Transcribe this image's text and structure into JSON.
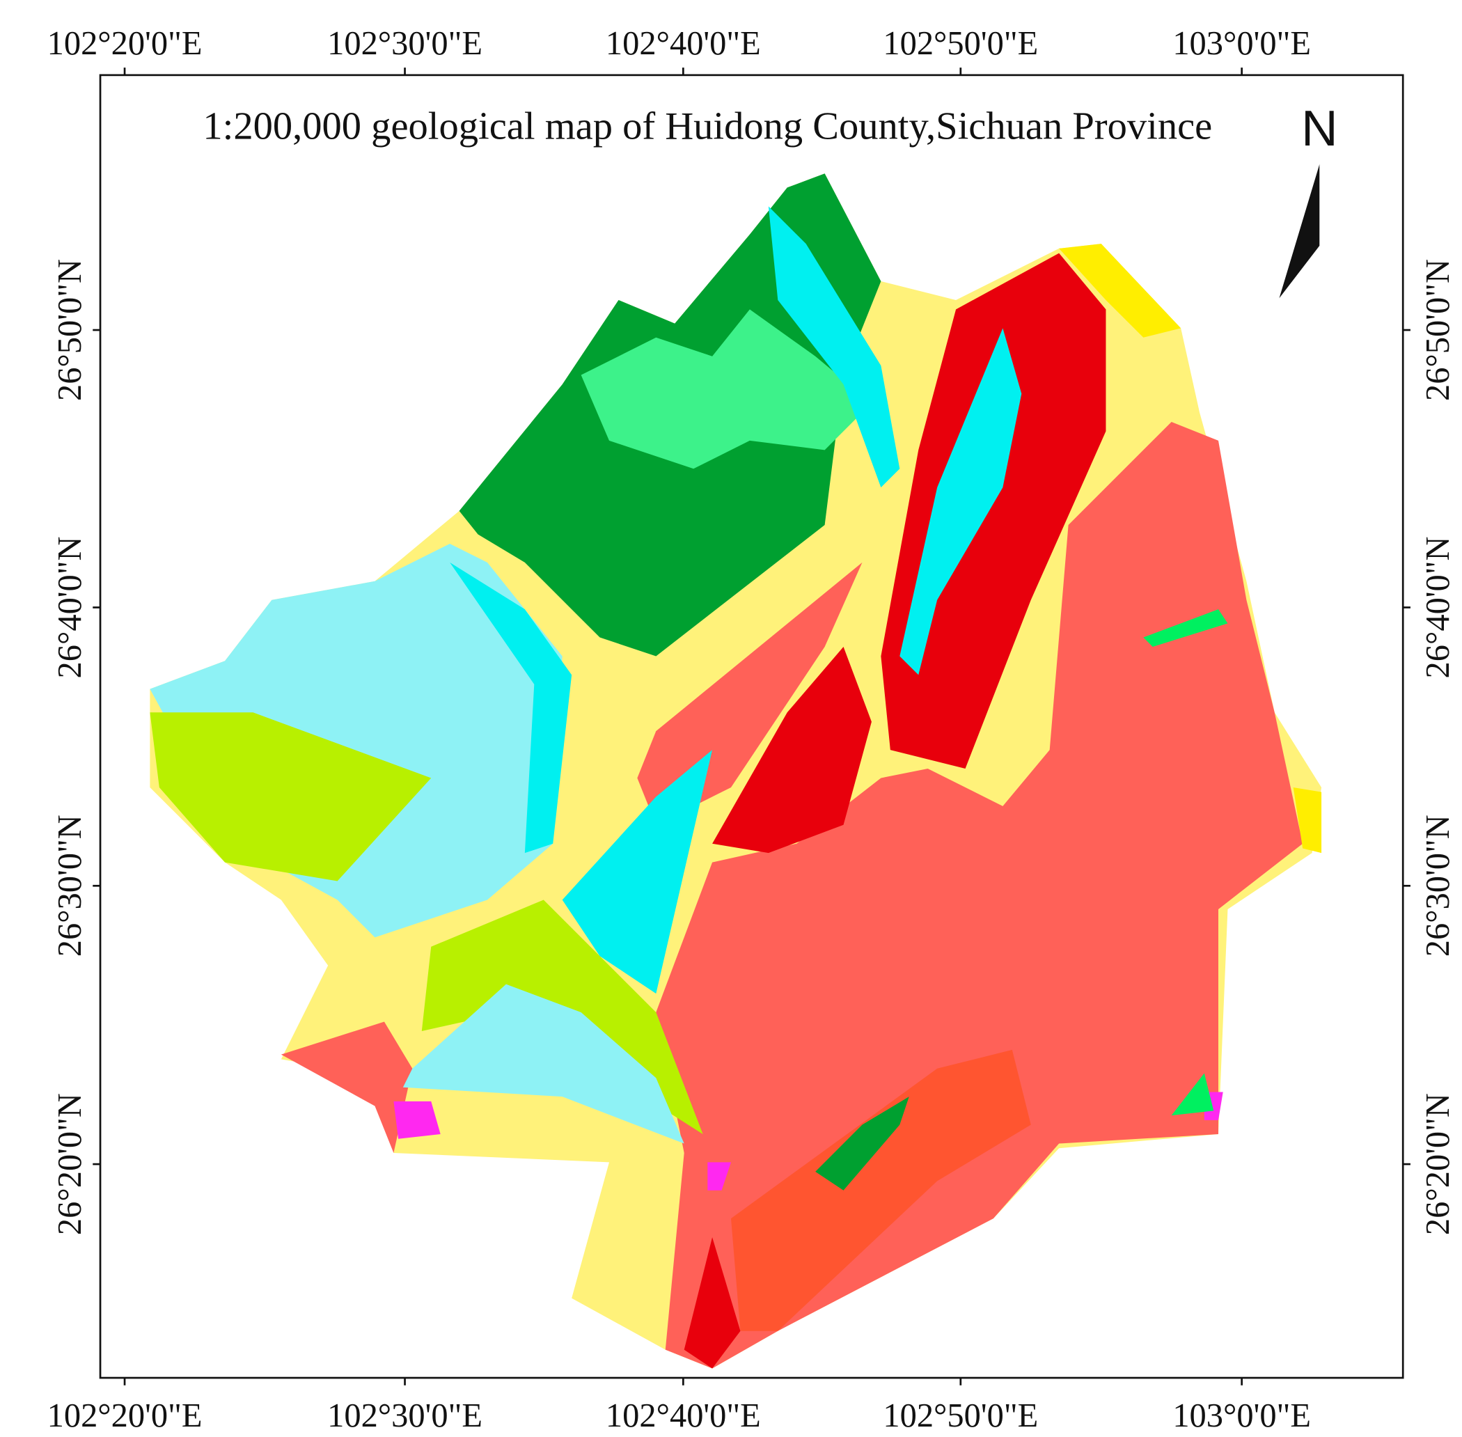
{
  "header": {
    "title": "1:200,000 geological map of Huidong County,Sichuan Province"
  },
  "north_arrow": {
    "label": "N"
  },
  "axes": {
    "longitude_labels": [
      "102°20'0\"E",
      "102°30'0\"E",
      "102°40'0\"E",
      "102°50'0\"E",
      "103°0'0\"E"
    ],
    "latitude_labels": [
      "26°50'0\"N",
      "26°40'0\"N",
      "26°30'0\"N",
      "26°20'0\"N"
    ]
  }
}
